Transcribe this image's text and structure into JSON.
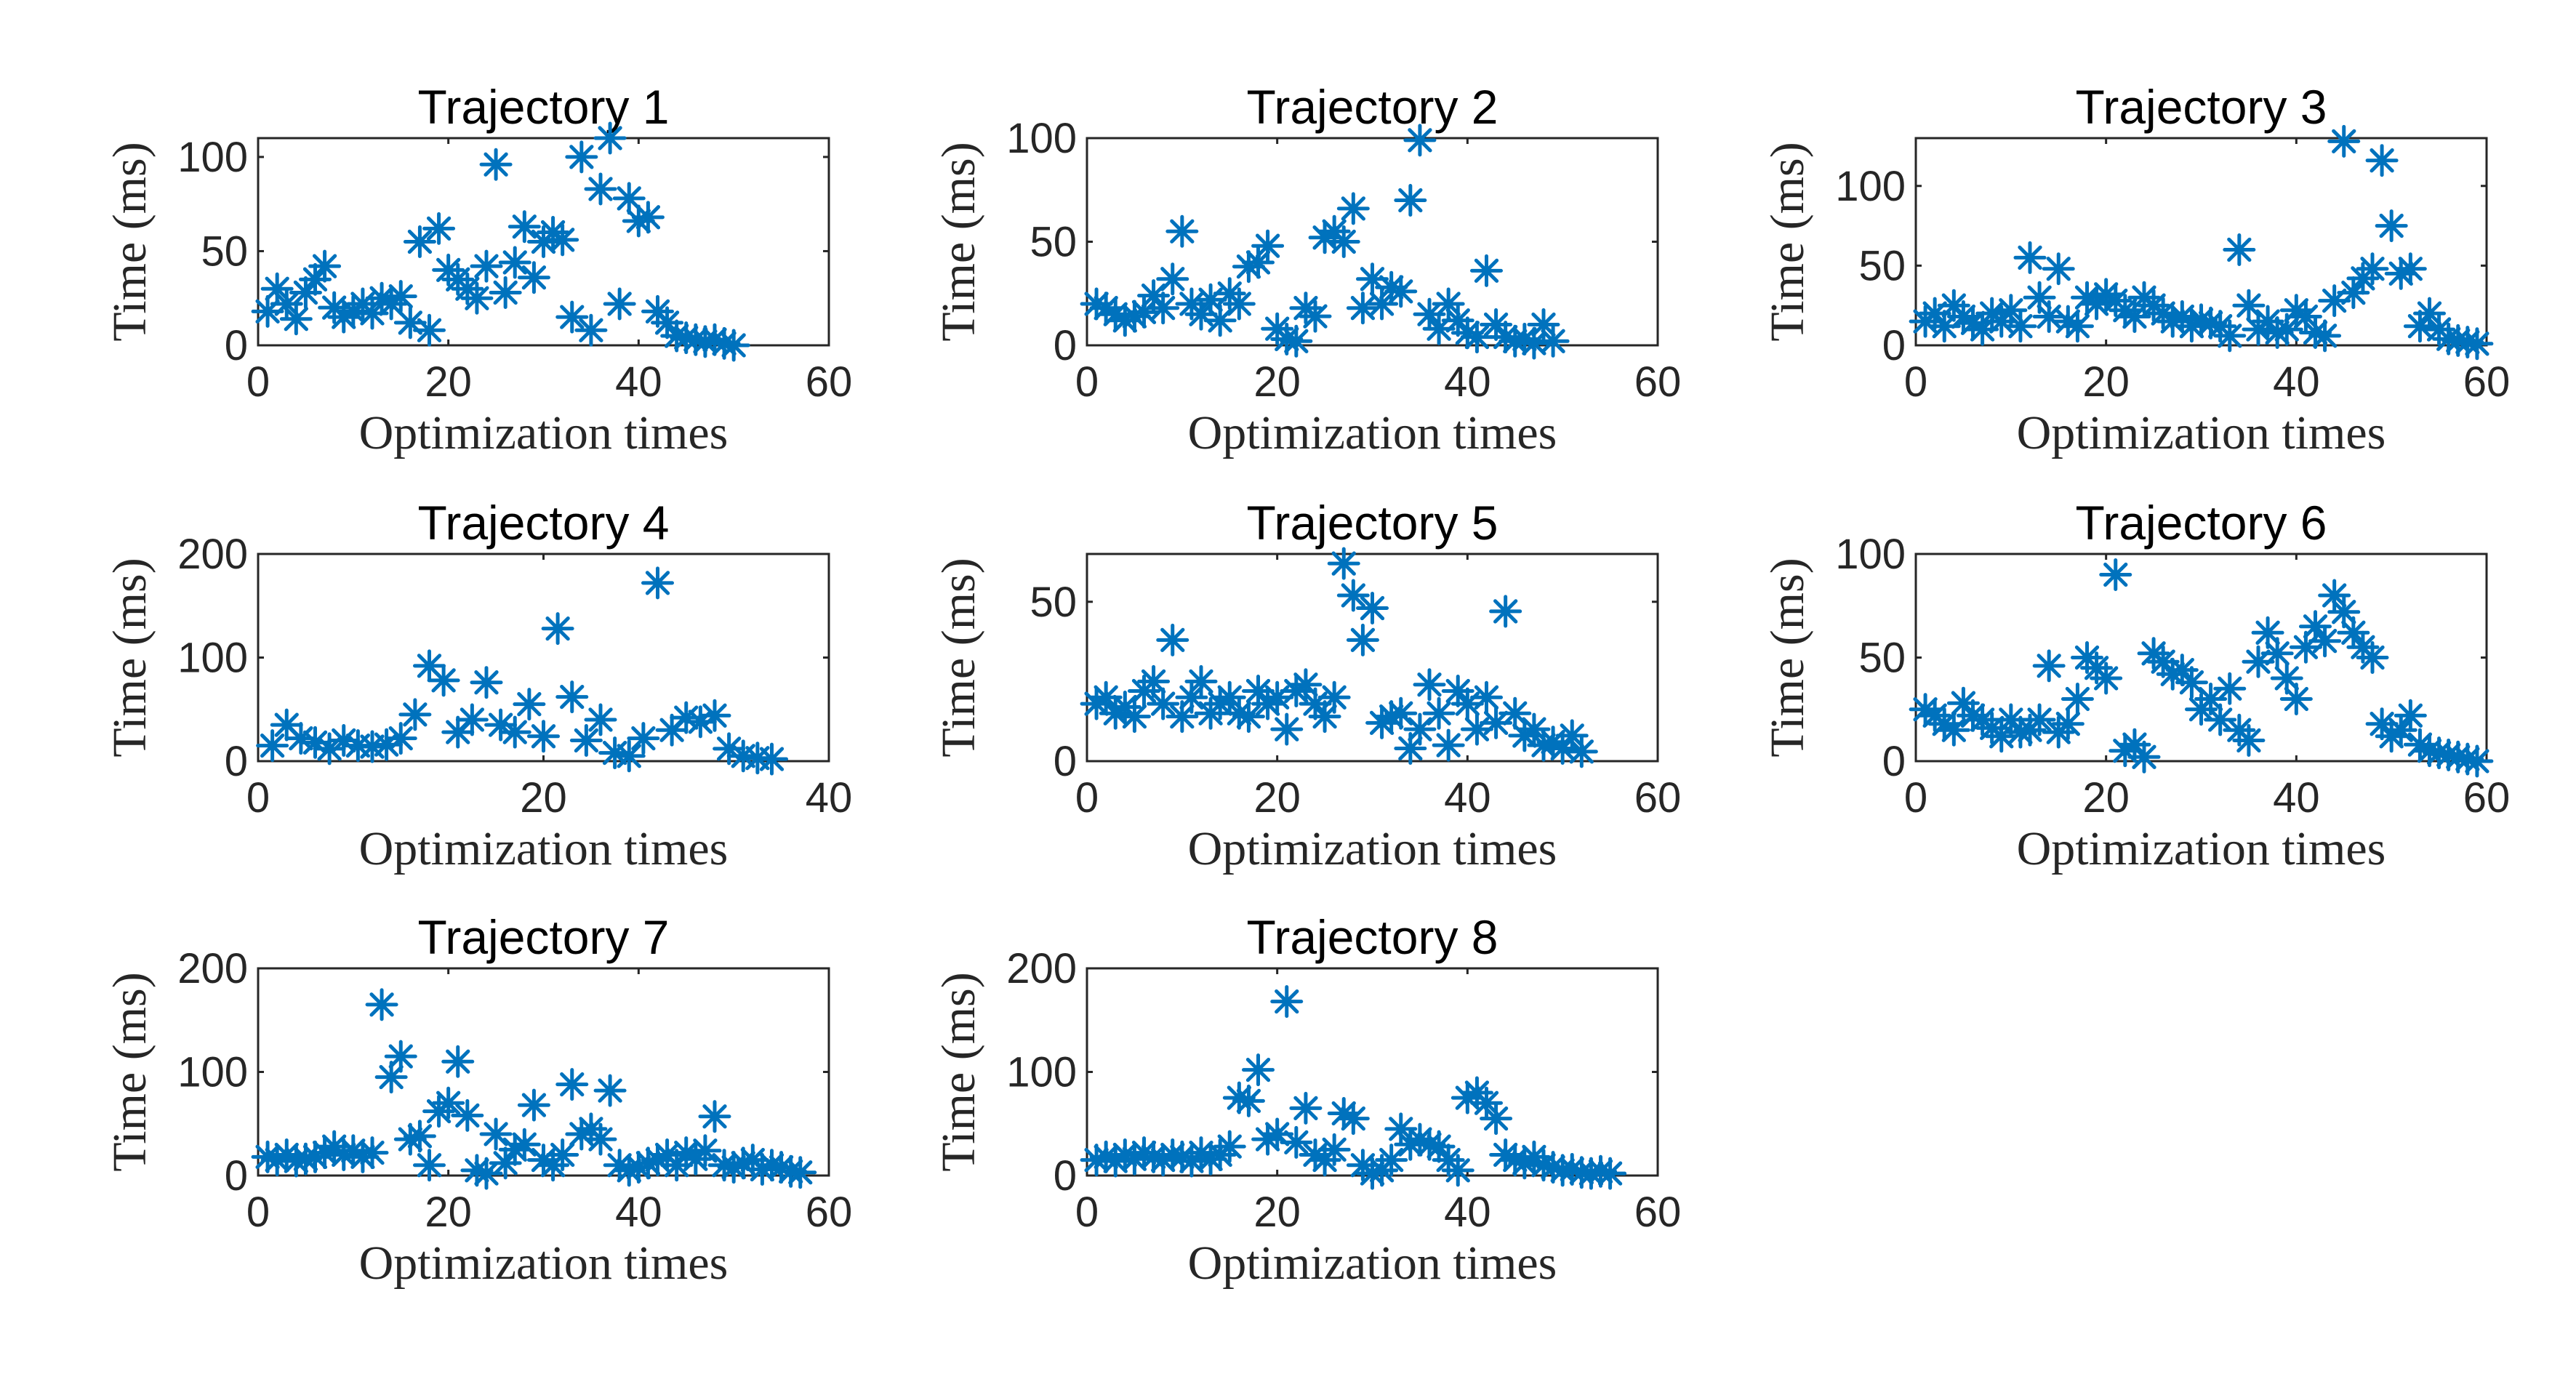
{
  "chart_data": [
    {
      "type": "scatter",
      "title": "Trajectory 1",
      "xlabel": "Optimization times",
      "ylabel": "Time (ms)",
      "xlim": [
        0,
        60
      ],
      "ylim": [
        0,
        110
      ],
      "xticks": [
        "0",
        "20",
        "40",
        "60"
      ],
      "yticks": [
        "0",
        "50",
        "100"
      ],
      "marker": "asterisk",
      "color": "#0072BD",
      "grid": false,
      "x": [
        1,
        2,
        3,
        4,
        5,
        6,
        7,
        8,
        9,
        10,
        11,
        12,
        13,
        14,
        15,
        16,
        17,
        18,
        19,
        20,
        21,
        22,
        23,
        24,
        25,
        26,
        27,
        28,
        29,
        30,
        31,
        32,
        33,
        34,
        35,
        36,
        37,
        38,
        39,
        40,
        41,
        42,
        43,
        44,
        45,
        46,
        47,
        48,
        49,
        50
      ],
      "y": [
        18,
        30,
        22,
        14,
        28,
        35,
        42,
        20,
        15,
        18,
        22,
        17,
        25,
        22,
        26,
        12,
        55,
        8,
        62,
        40,
        35,
        30,
        25,
        42,
        96,
        28,
        44,
        63,
        36,
        55,
        60,
        56,
        15,
        100,
        8,
        83,
        110,
        22,
        78,
        66,
        68,
        18,
        12,
        5,
        4,
        3,
        2,
        3,
        1,
        0
      ]
    },
    {
      "type": "scatter",
      "title": "Trajectory 2",
      "xlabel": "Optimization times",
      "ylabel": "Time (ms)",
      "xlim": [
        0,
        60
      ],
      "ylim": [
        0,
        100
      ],
      "xticks": [
        "0",
        "20",
        "40",
        "60"
      ],
      "yticks": [
        "0",
        "50",
        "100"
      ],
      "marker": "asterisk",
      "color": "#0072BD",
      "grid": false,
      "x": [
        1,
        2,
        3,
        4,
        5,
        6,
        7,
        8,
        9,
        10,
        11,
        12,
        13,
        14,
        15,
        16,
        17,
        18,
        19,
        20,
        21,
        22,
        23,
        24,
        25,
        26,
        27,
        28,
        29,
        30,
        31,
        32,
        33,
        34,
        35,
        36,
        37,
        38,
        39,
        40,
        41,
        42,
        43,
        44,
        45,
        46,
        47,
        48,
        49
      ],
      "y": [
        20,
        18,
        15,
        12,
        14,
        16,
        24,
        18,
        32,
        55,
        20,
        15,
        22,
        12,
        25,
        20,
        38,
        40,
        48,
        8,
        3,
        2,
        18,
        14,
        52,
        55,
        50,
        66,
        18,
        32,
        20,
        28,
        26,
        70,
        99,
        15,
        8,
        20,
        12,
        6,
        4,
        36,
        10,
        4,
        2,
        3,
        1,
        10,
        2
      ]
    },
    {
      "type": "scatter",
      "title": "Trajectory 3",
      "xlabel": "Optimization times",
      "ylabel": "Time (ms)",
      "xlim": [
        0,
        60
      ],
      "ylim": [
        0,
        130
      ],
      "xticks": [
        "0",
        "20",
        "40",
        "60"
      ],
      "yticks": [
        "0",
        "50",
        "100"
      ],
      "marker": "asterisk",
      "color": "#0072BD",
      "grid": false,
      "x": [
        1,
        2,
        3,
        4,
        5,
        6,
        7,
        8,
        9,
        10,
        11,
        12,
        13,
        14,
        15,
        16,
        17,
        18,
        19,
        20,
        21,
        22,
        23,
        24,
        25,
        26,
        27,
        28,
        29,
        30,
        31,
        32,
        33,
        34,
        35,
        36,
        37,
        38,
        39,
        40,
        41,
        42,
        43,
        44,
        45,
        46,
        47,
        48,
        49,
        50,
        51,
        52,
        53,
        54,
        55,
        56,
        57,
        58,
        59
      ],
      "y": [
        15,
        20,
        12,
        25,
        18,
        14,
        10,
        20,
        15,
        22,
        12,
        55,
        30,
        18,
        48,
        15,
        12,
        30,
        26,
        32,
        28,
        22,
        18,
        30,
        25,
        20,
        15,
        18,
        12,
        16,
        14,
        12,
        6,
        60,
        25,
        10,
        15,
        8,
        10,
        22,
        18,
        8,
        6,
        28,
        128,
        33,
        42,
        48,
        116,
        75,
        45,
        48,
        12,
        20,
        10,
        4,
        3,
        2,
        1
      ]
    },
    {
      "type": "scatter",
      "title": "Trajectory 4",
      "xlabel": "Optimization times",
      "ylabel": "Time (ms)",
      "xlim": [
        0,
        40
      ],
      "ylim": [
        0,
        200
      ],
      "xticks": [
        "0",
        "20",
        "40"
      ],
      "yticks": [
        "0",
        "100",
        "200"
      ],
      "marker": "asterisk",
      "color": "#0072BD",
      "grid": false,
      "x": [
        1,
        2,
        3,
        4,
        5,
        6,
        7,
        8,
        9,
        10,
        11,
        12,
        13,
        14,
        15,
        16,
        17,
        18,
        19,
        20,
        21,
        22,
        23,
        24,
        25,
        26,
        27,
        28,
        29,
        30,
        31,
        32,
        33,
        34,
        35,
        36
      ],
      "y": [
        15,
        35,
        22,
        18,
        12,
        20,
        15,
        14,
        16,
        22,
        45,
        92,
        78,
        28,
        40,
        76,
        35,
        28,
        55,
        24,
        128,
        62,
        20,
        40,
        8,
        5,
        22,
        172,
        30,
        42,
        38,
        44,
        12,
        5,
        3,
        2
      ]
    },
    {
      "type": "scatter",
      "title": "Trajectory 5",
      "xlabel": "Optimization times",
      "ylabel": "Time (ms)",
      "xlim": [
        0,
        60
      ],
      "ylim": [
        0,
        65
      ],
      "xticks": [
        "0",
        "20",
        "40",
        "60"
      ],
      "yticks": [
        "0",
        "50"
      ],
      "marker": "asterisk",
      "color": "#0072BD",
      "grid": false,
      "x": [
        1,
        2,
        3,
        4,
        5,
        6,
        7,
        8,
        9,
        10,
        11,
        12,
        13,
        14,
        15,
        16,
        17,
        18,
        19,
        20,
        21,
        22,
        23,
        24,
        25,
        26,
        27,
        28,
        29,
        30,
        31,
        32,
        33,
        34,
        35,
        36,
        37,
        38,
        39,
        40,
        41,
        42,
        43,
        44,
        45,
        46,
        47,
        48,
        49,
        50,
        51,
        52
      ],
      "y": [
        18,
        20,
        15,
        17,
        14,
        22,
        25,
        18,
        38,
        14,
        20,
        25,
        15,
        18,
        20,
        15,
        14,
        22,
        18,
        20,
        10,
        22,
        24,
        18,
        14,
        20,
        62,
        52,
        38,
        48,
        12,
        14,
        15,
        4,
        10,
        24,
        15,
        5,
        22,
        18,
        10,
        20,
        12,
        47,
        15,
        8,
        10,
        5,
        6,
        4,
        8,
        3
      ]
    },
    {
      "type": "scatter",
      "title": "Trajectory 6",
      "xlabel": "Optimization times",
      "ylabel": "Time (ms)",
      "xlim": [
        0,
        60
      ],
      "ylim": [
        0,
        100
      ],
      "xticks": [
        "0",
        "20",
        "40",
        "60"
      ],
      "yticks": [
        "0",
        "50",
        "100"
      ],
      "marker": "asterisk",
      "color": "#0072BD",
      "grid": false,
      "x": [
        1,
        2,
        3,
        4,
        5,
        6,
        7,
        8,
        9,
        10,
        11,
        12,
        13,
        14,
        15,
        16,
        17,
        18,
        19,
        20,
        21,
        22,
        23,
        24,
        25,
        26,
        27,
        28,
        29,
        30,
        31,
        32,
        33,
        34,
        35,
        36,
        37,
        38,
        39,
        40,
        41,
        42,
        43,
        44,
        45,
        46,
        47,
        48,
        49,
        50,
        51,
        52,
        53,
        54,
        55,
        56,
        57,
        58,
        59
      ],
      "y": [
        25,
        22,
        18,
        15,
        28,
        22,
        20,
        16,
        12,
        20,
        14,
        15,
        20,
        46,
        14,
        18,
        30,
        50,
        45,
        40,
        90,
        5,
        8,
        2,
        52,
        48,
        42,
        44,
        38,
        25,
        30,
        20,
        35,
        15,
        10,
        48,
        62,
        52,
        40,
        30,
        55,
        65,
        58,
        80,
        72,
        62,
        55,
        50,
        18,
        12,
        15,
        22,
        8,
        5,
        4,
        3,
        2,
        1,
        0
      ]
    },
    {
      "type": "scatter",
      "title": "Trajectory 7",
      "xlabel": "Optimization times",
      "ylabel": "Time (ms)",
      "xlim": [
        0,
        60
      ],
      "ylim": [
        0,
        200
      ],
      "xticks": [
        "0",
        "20",
        "40",
        "60"
      ],
      "yticks": [
        "0",
        "100",
        "200"
      ],
      "marker": "asterisk",
      "color": "#0072BD",
      "grid": false,
      "x": [
        1,
        2,
        3,
        4,
        5,
        6,
        7,
        8,
        9,
        10,
        11,
        12,
        13,
        14,
        15,
        16,
        17,
        18,
        19,
        20,
        21,
        22,
        23,
        24,
        25,
        26,
        27,
        28,
        29,
        30,
        31,
        32,
        33,
        34,
        35,
        36,
        37,
        38,
        39,
        40,
        41,
        42,
        43,
        44,
        45,
        46,
        47,
        48,
        49,
        50,
        51,
        52,
        53,
        54,
        55,
        56,
        57
      ],
      "y": [
        18,
        15,
        20,
        14,
        16,
        18,
        22,
        28,
        20,
        24,
        18,
        22,
        165,
        95,
        115,
        35,
        38,
        10,
        62,
        70,
        110,
        58,
        5,
        2,
        40,
        12,
        25,
        30,
        68,
        15,
        10,
        20,
        88,
        40,
        45,
        35,
        82,
        10,
        5,
        8,
        12,
        15,
        20,
        10,
        22,
        16,
        24,
        57,
        10,
        8,
        12,
        15,
        6,
        10,
        8,
        4,
        3
      ]
    },
    {
      "type": "scatter",
      "title": "Trajectory 8",
      "xlabel": "Optimization times",
      "ylabel": "Time (ms)",
      "xlim": [
        0,
        60
      ],
      "ylim": [
        0,
        200
      ],
      "xticks": [
        "0",
        "20",
        "40",
        "60"
      ],
      "yticks": [
        "0",
        "100",
        "200"
      ],
      "marker": "asterisk",
      "color": "#0072BD",
      "grid": false,
      "x": [
        1,
        2,
        3,
        4,
        5,
        6,
        7,
        8,
        9,
        10,
        11,
        12,
        13,
        14,
        15,
        16,
        17,
        18,
        19,
        20,
        21,
        22,
        23,
        24,
        25,
        26,
        27,
        28,
        29,
        30,
        31,
        32,
        33,
        34,
        35,
        36,
        37,
        38,
        39,
        40,
        41,
        42,
        43,
        44,
        45,
        46,
        47,
        48,
        49,
        50,
        51,
        52,
        53,
        54,
        55
      ],
      "y": [
        15,
        18,
        14,
        20,
        16,
        22,
        18,
        15,
        20,
        18,
        14,
        22,
        16,
        20,
        28,
        75,
        72,
        102,
        35,
        40,
        168,
        32,
        65,
        20,
        15,
        25,
        60,
        55,
        10,
        2,
        5,
        15,
        45,
        30,
        35,
        30,
        28,
        15,
        5,
        75,
        80,
        70,
        55,
        20,
        15,
        12,
        18,
        10,
        8,
        5,
        6,
        3,
        2,
        4,
        2
      ]
    }
  ]
}
